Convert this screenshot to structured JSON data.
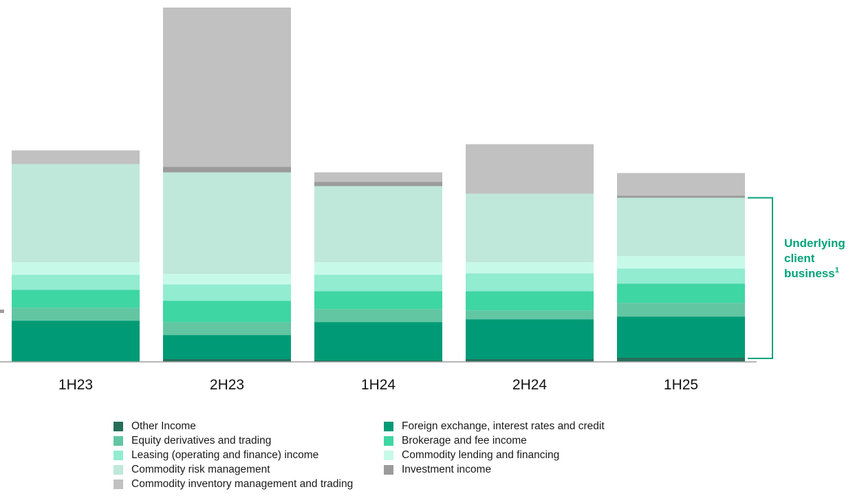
{
  "chart_data": {
    "type": "bar",
    "stacked": true,
    "title": "",
    "xlabel": "",
    "ylabel": "",
    "ylim": [
      0,
      520
    ],
    "grid": false,
    "legend_position": "bottom",
    "categories": [
      "1H23",
      "2H23",
      "1H24",
      "2H24",
      "1H25"
    ],
    "series": [
      {
        "name": "Other Income",
        "color": "#266e5a",
        "values": [
          0,
          4,
          2,
          4,
          6
        ]
      },
      {
        "name": "Foreign exchange, interest rates and credit",
        "color": "#009b76",
        "values": [
          60,
          35,
          56,
          58,
          60
        ]
      },
      {
        "name": "Equity derivatives and trading",
        "color": "#62c6a3",
        "values": [
          19,
          19,
          19,
          13,
          20
        ]
      },
      {
        "name": "Brokerage and fee income",
        "color": "#3ed6a3",
        "values": [
          26,
          31,
          26,
          28,
          28
        ]
      },
      {
        "name": "Leasing (operating and finance) income",
        "color": "#91ecd0",
        "values": [
          22,
          24,
          24,
          26,
          22
        ]
      },
      {
        "name": "Commodity lending and financing",
        "color": "#c7f9e9",
        "values": [
          18,
          15,
          18,
          16,
          18
        ]
      },
      {
        "name": "Commodity risk management",
        "color": "#bfe8da",
        "values": [
          143,
          148,
          111,
          100,
          85
        ]
      },
      {
        "name": "Investment income",
        "color": "#9b9b9b",
        "values": [
          0,
          8,
          6,
          0,
          3
        ]
      },
      {
        "name": "Commodity inventory management and trading",
        "color": "#c1c1c1",
        "values": [
          20,
          232,
          14,
          72,
          33
        ]
      }
    ],
    "annotations": [
      {
        "text_lines": [
          "Underlying",
          "client",
          "business"
        ],
        "superscript": "1",
        "spans_series": "Other Income to Commodity risk management"
      }
    ]
  },
  "legend": {
    "items": [
      {
        "label": "Other Income",
        "color": "#266e5a"
      },
      {
        "label": "Foreign exchange, interest rates and credit",
        "color": "#009b76"
      },
      {
        "label": "Equity derivatives and trading",
        "color": "#62c6a3"
      },
      {
        "label": "Brokerage and fee income",
        "color": "#3ed6a3"
      },
      {
        "label": "Leasing (operating and finance) income",
        "color": "#91ecd0"
      },
      {
        "label": "Commodity lending and financing",
        "color": "#c7f9e9"
      },
      {
        "label": "Commodity risk management",
        "color": "#bfe8da"
      },
      {
        "label": "Investment income",
        "color": "#9b9b9b"
      },
      {
        "label": "Commodity inventory management and trading",
        "color": "#c1c1c1"
      }
    ]
  },
  "bracket_color": "#00a37a"
}
